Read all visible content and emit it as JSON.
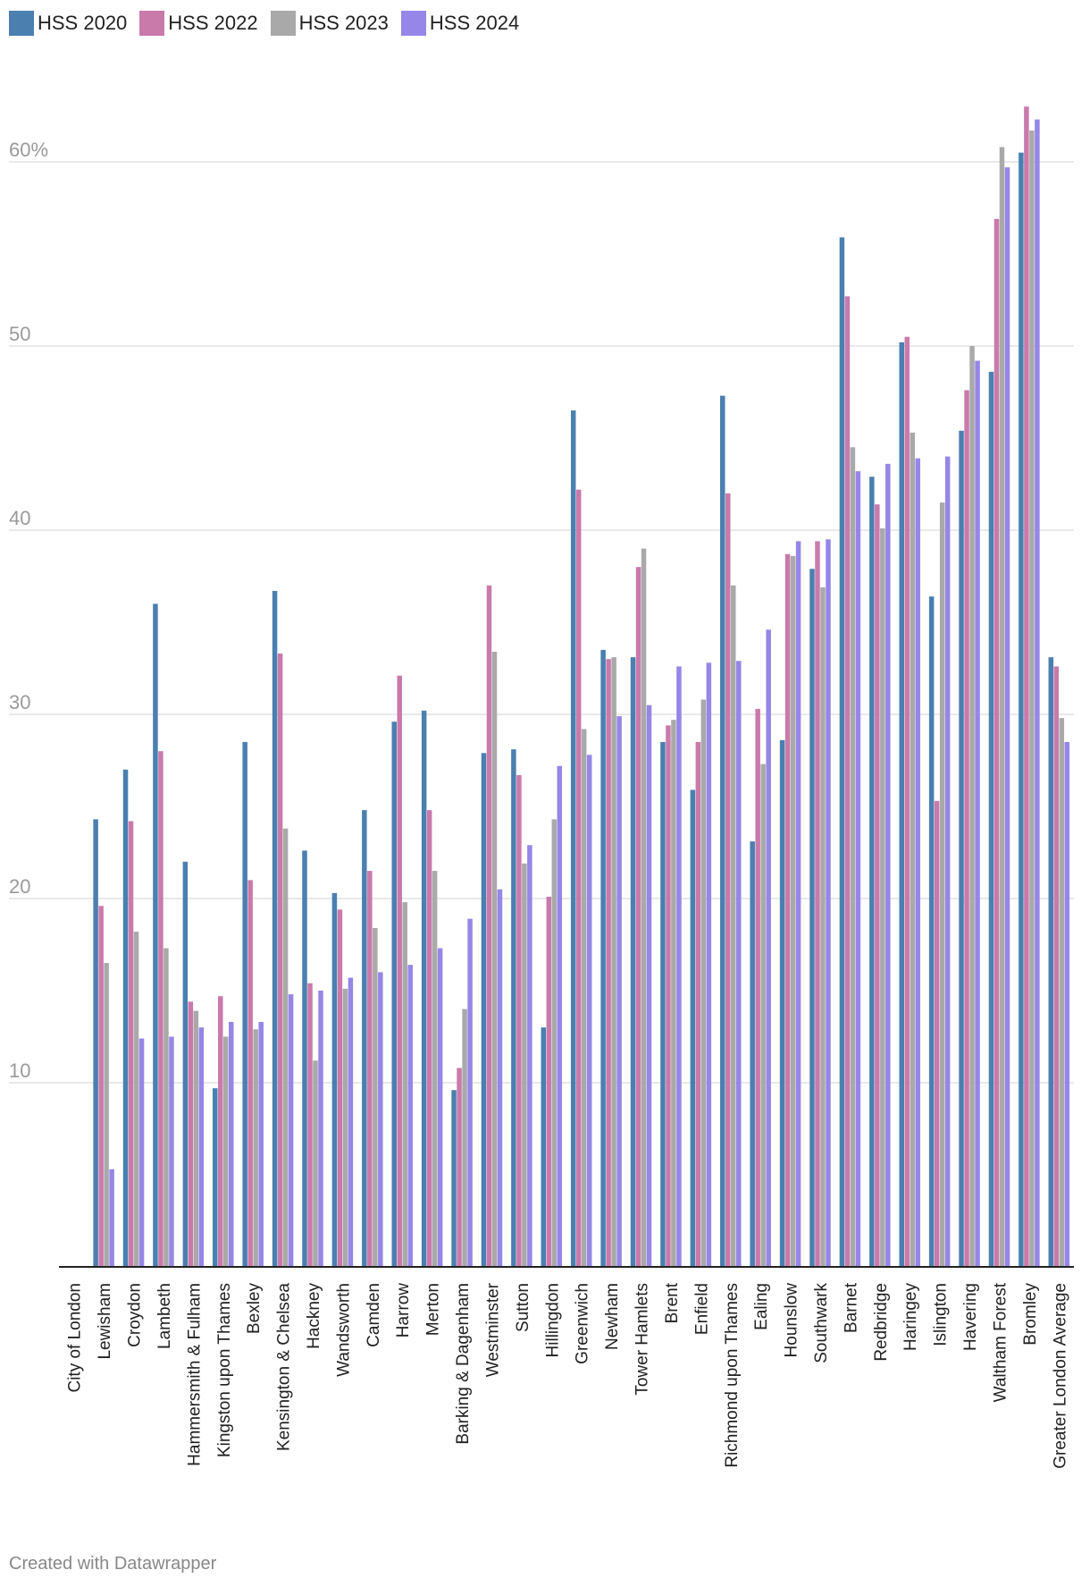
{
  "chart_data": {
    "type": "bar",
    "title": "",
    "xlabel": "",
    "ylabel": "",
    "ylim": [
      0,
      70
    ],
    "grid": true,
    "legend_position": "top-left",
    "yticks": [
      10,
      20,
      30,
      40,
      50,
      60
    ],
    "ytick_labels": [
      "10",
      "20",
      "30",
      "40",
      "50",
      "60%"
    ],
    "categories": [
      "City of London",
      "Lewisham",
      "Croydon",
      "Lambeth",
      "Hammersmith & Fulham",
      "Kingston upon Thames",
      "Bexley",
      "Kensington & Chelsea",
      "Hackney",
      "Wandsworth",
      "Camden",
      "Harrow",
      "Merton",
      "Barking & Dagenham",
      "Westminster",
      "Sutton",
      "Hillingdon",
      "Greenwich",
      "Newham",
      "Tower Hamlets",
      "Brent",
      "Enfield",
      "Richmond upon Thames",
      "Ealing",
      "Hounslow",
      "Southwark",
      "Barnet",
      "Redbridge",
      "Haringey",
      "Islington",
      "Havering",
      "Waltham Forest",
      "Bromley",
      "Greater London Average"
    ],
    "series": [
      {
        "name": "HSS 2020",
        "color": "#4a7fb0",
        "values": [
          null,
          24.3,
          27.0,
          36.0,
          22.0,
          9.7,
          28.5,
          36.7,
          22.6,
          20.3,
          24.8,
          29.6,
          30.2,
          9.6,
          27.9,
          28.1,
          13.0,
          46.5,
          33.5,
          33.1,
          28.5,
          25.9,
          47.3,
          23.1,
          28.6,
          37.9,
          55.9,
          42.9,
          50.2,
          36.4,
          45.4,
          48.6,
          60.5,
          33.1
        ]
      },
      {
        "name": "HSS 2022",
        "color": "#c97aab",
        "values": [
          null,
          19.6,
          24.2,
          28.0,
          14.4,
          14.7,
          21.0,
          33.3,
          15.4,
          19.4,
          21.5,
          32.1,
          24.8,
          10.8,
          37.0,
          26.7,
          20.1,
          42.2,
          33.0,
          38.0,
          29.4,
          28.5,
          42.0,
          30.3,
          38.7,
          39.4,
          52.7,
          41.4,
          50.5,
          25.3,
          47.6,
          56.9,
          63.0,
          32.6
        ]
      },
      {
        "name": "HSS 2023",
        "color": "#a9a9a9",
        "values": [
          null,
          16.5,
          18.2,
          17.3,
          13.9,
          12.5,
          12.9,
          23.8,
          11.2,
          15.1,
          18.4,
          19.8,
          21.5,
          14.0,
          33.4,
          21.9,
          24.3,
          29.2,
          33.1,
          39.0,
          29.7,
          30.8,
          37.0,
          27.3,
          38.6,
          36.9,
          44.5,
          40.1,
          45.3,
          41.5,
          50.0,
          60.8,
          61.7,
          29.8
        ]
      },
      {
        "name": "HSS 2024",
        "color": "#9686e7",
        "values": [
          null,
          5.3,
          12.4,
          12.5,
          13.0,
          13.3,
          13.3,
          14.8,
          15.0,
          15.7,
          16.0,
          16.4,
          17.3,
          18.9,
          20.5,
          22.9,
          27.2,
          27.8,
          29.9,
          30.5,
          32.6,
          32.8,
          32.9,
          34.6,
          39.4,
          39.5,
          43.2,
          43.6,
          43.9,
          44.0,
          49.2,
          59.7,
          62.3,
          28.5
        ]
      }
    ]
  },
  "footer": {
    "credit": "Created with Datawrapper"
  }
}
